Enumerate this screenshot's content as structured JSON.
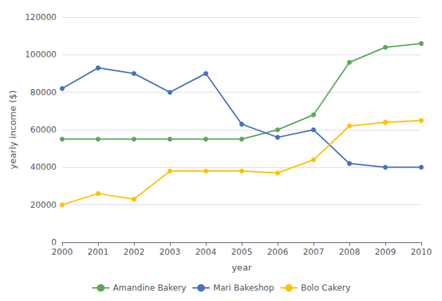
{
  "chart_data": {
    "type": "line",
    "categories": [
      "2000",
      "2001",
      "2002",
      "2003",
      "2004",
      "2005",
      "2006",
      "2007",
      "2008",
      "2009",
      "2010"
    ],
    "series": [
      {
        "name": "Amandine Bakery",
        "color": "#5BA85A",
        "values": [
          55000,
          55000,
          55000,
          55000,
          55000,
          55000,
          60000,
          68000,
          96000,
          104000,
          106000
        ]
      },
      {
        "name": "Mari Bakeshop",
        "color": "#4472C4",
        "values": [
          82000,
          93000,
          90000,
          80000,
          90000,
          63000,
          56000,
          60000,
          42000,
          40000,
          40000
        ]
      },
      {
        "name": "Bolo Cakery",
        "color": "#FFC000",
        "values": [
          20000,
          26000,
          23000,
          38000,
          38000,
          38000,
          37000,
          44000,
          62000,
          64000,
          65000
        ]
      }
    ],
    "xlabel": "year",
    "ylabel": "yearly income ($)",
    "ylim": [
      0,
      120000
    ],
    "yticks": [
      0,
      20000,
      40000,
      60000,
      80000,
      100000,
      120000
    ],
    "grid": true,
    "legend": "bottom",
    "marker": "circle"
  }
}
